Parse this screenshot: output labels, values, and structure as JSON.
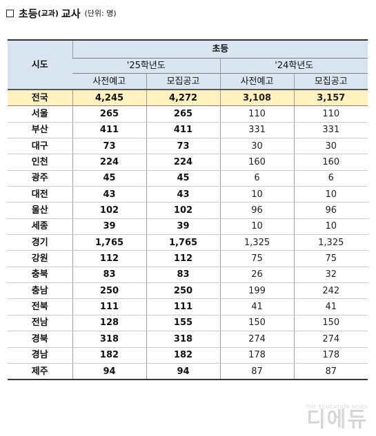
{
  "title": {
    "main": "초등",
    "sub": "(교과)",
    "main2": "교사",
    "unit": "(단위: 명)"
  },
  "table": {
    "region_header": "시도",
    "group_header": "초등",
    "years": [
      "'25학년도",
      "'24학년도"
    ],
    "subheaders": [
      "사전예고",
      "모집공고",
      "사전예고",
      "모집공고"
    ],
    "rows": [
      {
        "region": "전국",
        "values": [
          "4,245",
          "4,272",
          "3,108",
          "3,157"
        ]
      },
      {
        "region": "서울",
        "values": [
          "265",
          "265",
          "110",
          "110"
        ]
      },
      {
        "region": "부산",
        "values": [
          "411",
          "411",
          "331",
          "331"
        ]
      },
      {
        "region": "대구",
        "values": [
          "73",
          "73",
          "30",
          "30"
        ]
      },
      {
        "region": "인천",
        "values": [
          "224",
          "224",
          "160",
          "160"
        ]
      },
      {
        "region": "광주",
        "values": [
          "45",
          "45",
          "6",
          "6"
        ]
      },
      {
        "region": "대전",
        "values": [
          "43",
          "43",
          "10",
          "10"
        ]
      },
      {
        "region": "울산",
        "values": [
          "102",
          "102",
          "96",
          "96"
        ]
      },
      {
        "region": "세종",
        "values": [
          "39",
          "39",
          "10",
          "10"
        ]
      },
      {
        "region": "경기",
        "values": [
          "1,765",
          "1,765",
          "1,325",
          "1,325"
        ]
      },
      {
        "region": "강원",
        "values": [
          "112",
          "112",
          "75",
          "75"
        ]
      },
      {
        "region": "충북",
        "values": [
          "83",
          "83",
          "26",
          "32"
        ]
      },
      {
        "region": "충남",
        "values": [
          "250",
          "250",
          "199",
          "242"
        ]
      },
      {
        "region": "전북",
        "values": [
          "111",
          "111",
          "41",
          "41"
        ]
      },
      {
        "region": "전남",
        "values": [
          "128",
          "155",
          "150",
          "150"
        ]
      },
      {
        "region": "경북",
        "values": [
          "318",
          "318",
          "274",
          "274"
        ]
      },
      {
        "region": "경남",
        "values": [
          "182",
          "182",
          "178",
          "178"
        ]
      },
      {
        "region": "제주",
        "values": [
          "94",
          "94",
          "87",
          "87"
        ]
      }
    ]
  },
  "watermark": {
    "small": "THE EDUCATION NEWS",
    "big": "디에듀"
  },
  "colors": {
    "header_bg": "#dae5f2",
    "total_row_bg": "#fff2bf"
  }
}
